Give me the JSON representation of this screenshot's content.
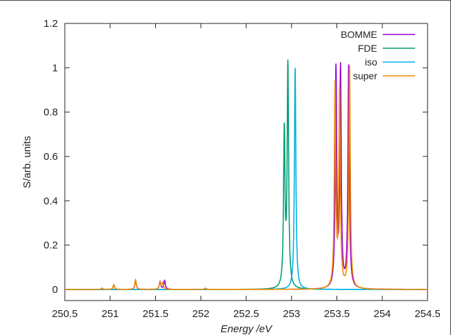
{
  "chart_data": {
    "type": "line",
    "title": "",
    "xlabel": "Energy /eV",
    "ylabel": "S/arb. units",
    "xlim": [
      250.5,
      254.5
    ],
    "ylim": [
      -0.05,
      1.2
    ],
    "xticks": [
      "250.5",
      "251",
      "251.5",
      "252",
      "252.5",
      "253",
      "253.5",
      "254",
      "254.5"
    ],
    "yticks": [
      "0",
      "0.2",
      "0.4",
      "0.6",
      "0.8",
      "1",
      "1.2"
    ],
    "grid": false,
    "legend_position": "top-right",
    "series": [
      {
        "name": "BOMME",
        "color": "#9400d3",
        "peaks": [
          [
            250.91,
            0.006
          ],
          [
            251.04,
            0.02
          ],
          [
            251.28,
            0.04
          ],
          [
            251.55,
            0.035
          ],
          [
            251.6,
            0.04
          ],
          [
            252.05,
            0.005
          ],
          [
            253.49,
            0.98
          ],
          [
            253.54,
            0.98
          ],
          [
            253.63,
            1.0
          ]
        ]
      },
      {
        "name": "FDE",
        "color": "#009e73",
        "peaks": [
          [
            252.92,
            0.7
          ],
          [
            252.96,
            1.0
          ]
        ]
      },
      {
        "name": "iso",
        "color": "#00b0e8",
        "peaks": [
          [
            253.04,
            1.0
          ]
        ]
      },
      {
        "name": "super",
        "color": "#f08c00",
        "peaks": [
          [
            250.91,
            0.006
          ],
          [
            251.04,
            0.022
          ],
          [
            251.28,
            0.045
          ],
          [
            251.55,
            0.03
          ],
          [
            251.58,
            0.03
          ],
          [
            252.05,
            0.006
          ],
          [
            253.48,
            0.91
          ],
          [
            253.53,
            0.88
          ],
          [
            253.64,
            1.0
          ]
        ]
      }
    ]
  }
}
